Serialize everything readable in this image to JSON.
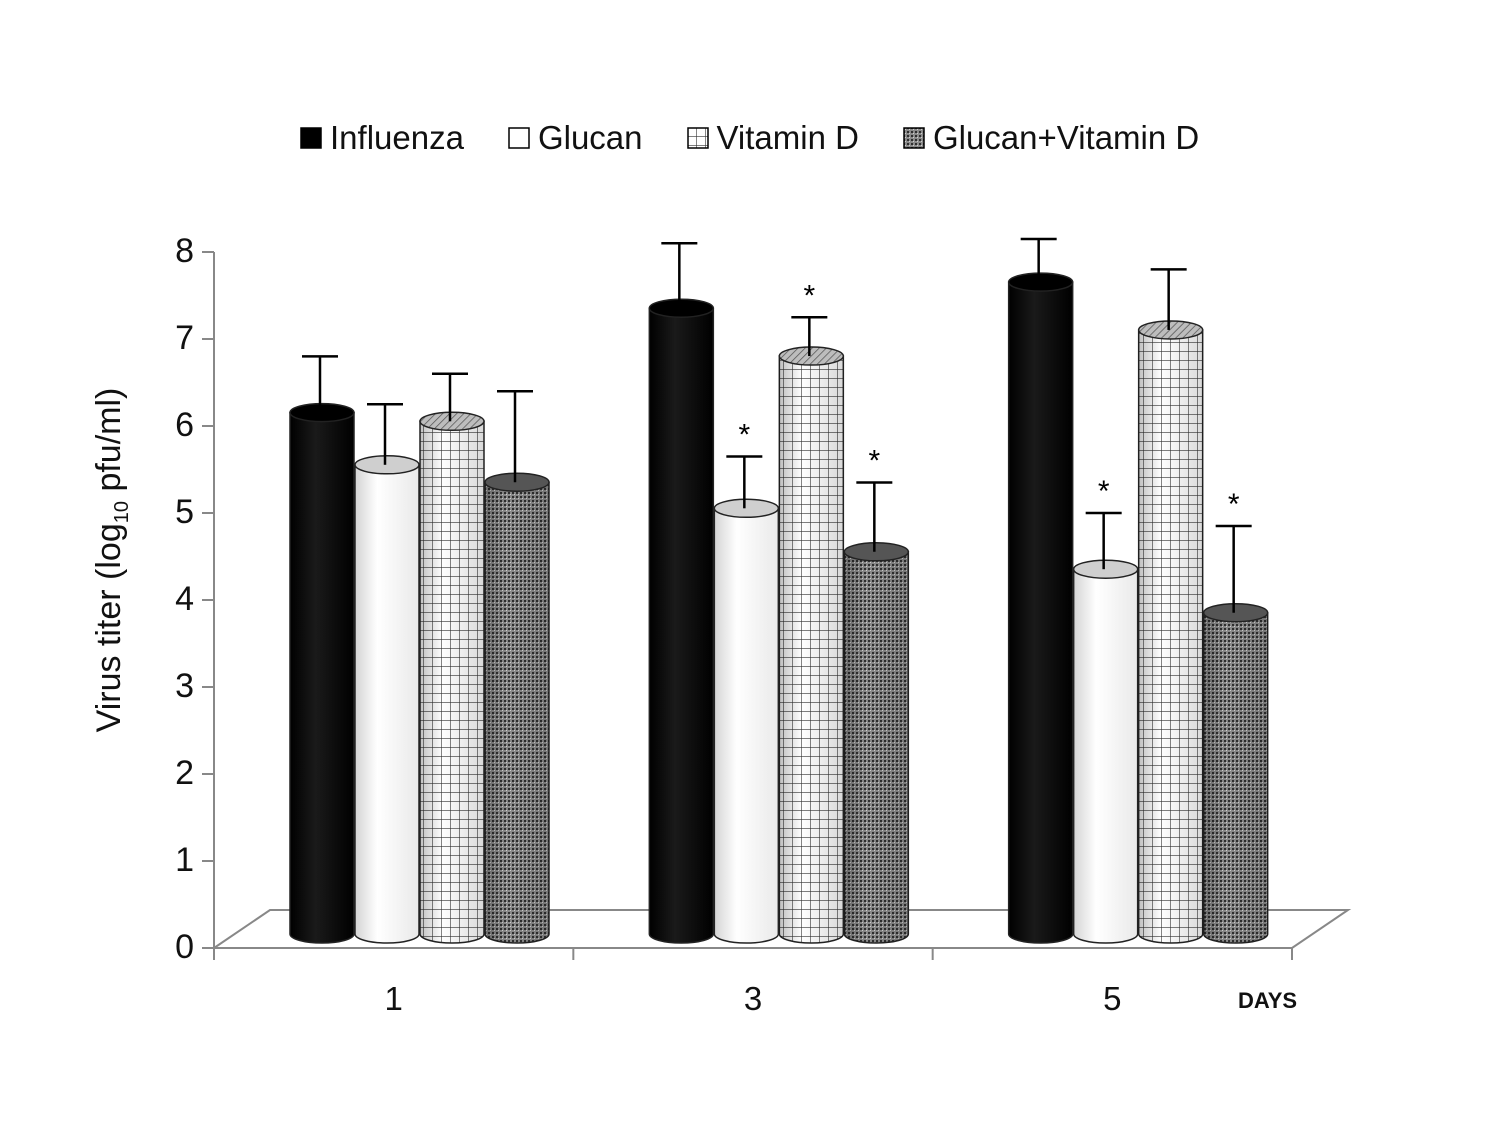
{
  "chart_data": {
    "type": "bar",
    "title": "",
    "xlabel": "DAYS",
    "ylabel_main": "Virus titer (log",
    "ylabel_sub": "10",
    "ylabel_tail": " pfu/ml)",
    "ylim": [
      0,
      8
    ],
    "yticks": [
      "0",
      "1",
      "2",
      "3",
      "4",
      "5",
      "6",
      "7",
      "8"
    ],
    "categories": [
      "1",
      "3",
      "5"
    ],
    "significance_marker": "*",
    "series": [
      {
        "name": "Influenza",
        "values": [
          6.2,
          7.4,
          7.7
        ],
        "errors": [
          0.6,
          0.7,
          0.45
        ],
        "significant": [
          false,
          false,
          false
        ],
        "fill": "solid-black"
      },
      {
        "name": "Glucan",
        "values": [
          5.6,
          5.1,
          4.4
        ],
        "errors": [
          0.65,
          0.55,
          0.6
        ],
        "significant": [
          false,
          true,
          true
        ],
        "fill": "white"
      },
      {
        "name": "Vitamin D",
        "values": [
          6.1,
          6.85,
          7.15
        ],
        "errors": [
          0.5,
          0.4,
          0.65
        ],
        "significant": [
          false,
          true,
          false
        ],
        "fill": "grid"
      },
      {
        "name": "Glucan+Vitamin D",
        "values": [
          5.4,
          4.6,
          3.9
        ],
        "errors": [
          1.0,
          0.75,
          0.95
        ],
        "significant": [
          false,
          true,
          true
        ],
        "fill": "dots"
      }
    ]
  }
}
